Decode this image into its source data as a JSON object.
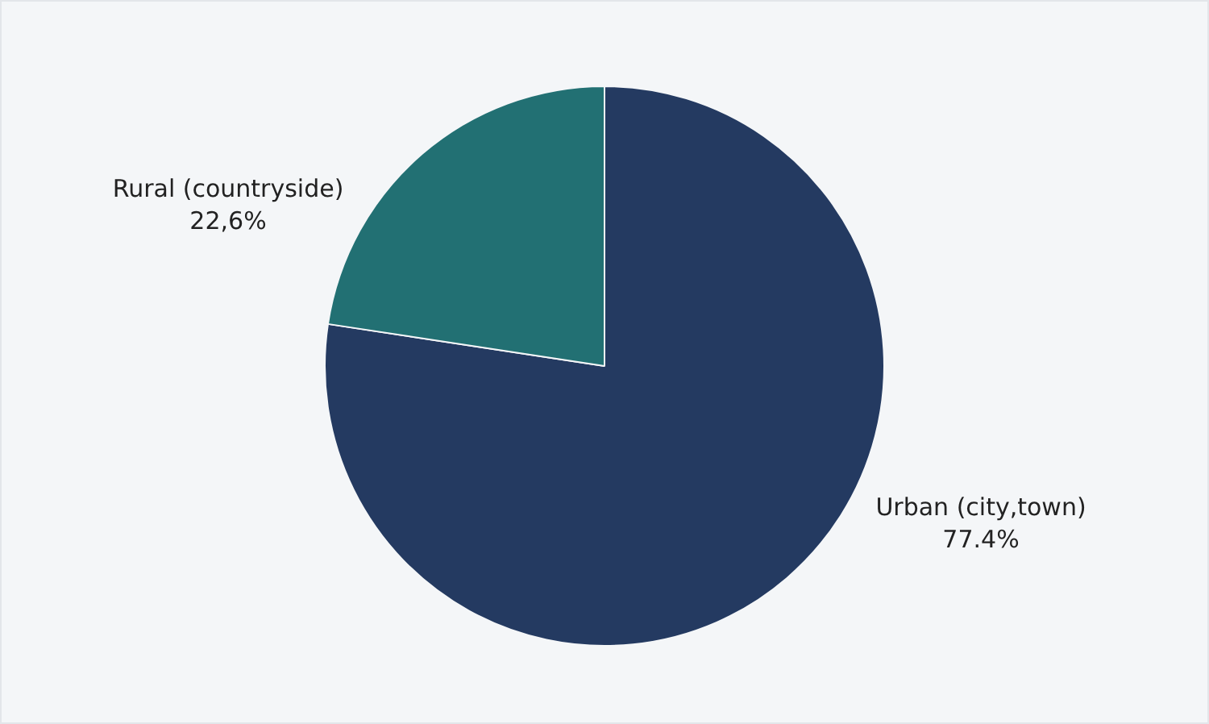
{
  "chart_data": {
    "type": "pie",
    "categories": [
      "Urban (city,town)",
      "Rural (countryside)"
    ],
    "values": [
      77.4,
      22.6
    ],
    "colors": [
      "#243a61",
      "#227073"
    ],
    "value_labels": [
      "77.4%",
      "22,6%"
    ],
    "legend": false
  }
}
